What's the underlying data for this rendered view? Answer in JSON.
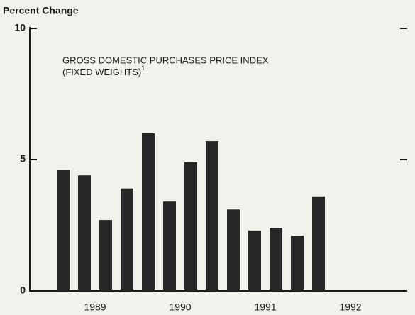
{
  "chart_data": {
    "type": "bar",
    "y_axis_label": "Percent Change",
    "title_lines": [
      "GROSS DOMESTIC PURCHASES PRICE INDEX",
      "(FIXED WEIGHTS)"
    ],
    "title_note": "1",
    "categories": [
      null,
      null,
      null,
      null,
      null,
      null,
      null,
      null,
      null,
      null,
      null,
      null,
      null,
      null,
      null,
      null
    ],
    "x_group_labels": [
      "1989",
      "1990",
      "1991",
      "1992"
    ],
    "values": [
      4.6,
      4.4,
      2.7,
      3.9,
      6.0,
      3.4,
      4.9,
      5.7,
      3.1,
      2.3,
      2.4,
      2.1,
      3.6,
      null,
      null,
      null
    ],
    "color": "#262626",
    "ylim": [
      0,
      10
    ],
    "yticks": [
      0,
      5,
      10
    ],
    "grid": false
  }
}
